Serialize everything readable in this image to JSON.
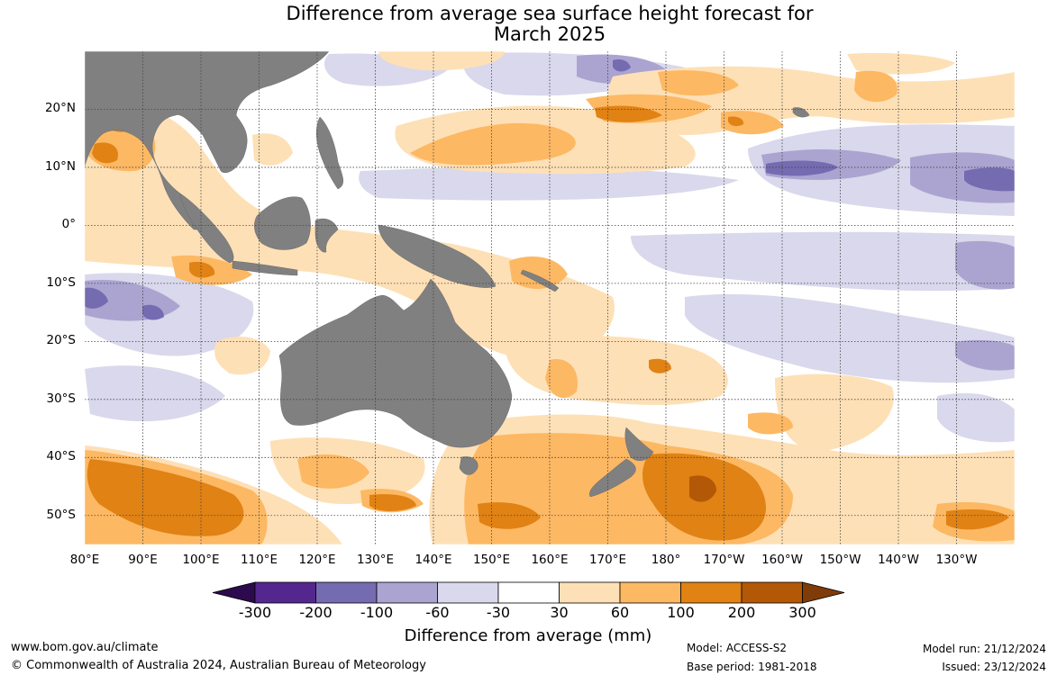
{
  "title_line1": "Difference from average sea surface height forecast for",
  "title_line2": "March 2025",
  "map": {
    "lon_range": [
      80,
      240
    ],
    "lat_range": [
      -55,
      30
    ],
    "lat_labels": [
      {
        "lat": 20,
        "label": "20°N"
      },
      {
        "lat": 10,
        "label": "10°N"
      },
      {
        "lat": 0,
        "label": "0°"
      },
      {
        "lat": -10,
        "label": "10°S"
      },
      {
        "lat": -20,
        "label": "20°S"
      },
      {
        "lat": -30,
        "label": "30°S"
      },
      {
        "lat": -40,
        "label": "40°S"
      },
      {
        "lat": -50,
        "label": "50°S"
      }
    ],
    "lon_labels": [
      {
        "lon": 80,
        "label": "80°E"
      },
      {
        "lon": 90,
        "label": "90°E"
      },
      {
        "lon": 100,
        "label": "100°E"
      },
      {
        "lon": 110,
        "label": "110°E"
      },
      {
        "lon": 120,
        "label": "120°E"
      },
      {
        "lon": 130,
        "label": "130°E"
      },
      {
        "lon": 140,
        "label": "140°E"
      },
      {
        "lon": 150,
        "label": "150°E"
      },
      {
        "lon": 160,
        "label": "160°E"
      },
      {
        "lon": 170,
        "label": "170°E"
      },
      {
        "lon": 180,
        "label": "180°"
      },
      {
        "lon": 190,
        "label": "170°W"
      },
      {
        "lon": 200,
        "label": "160°W"
      },
      {
        "lon": 210,
        "label": "150°W"
      },
      {
        "lon": 220,
        "label": "140°W"
      },
      {
        "lon": 230,
        "label": "130°W"
      }
    ],
    "land_color": "#808080"
  },
  "colorbar": {
    "ticks": [
      "-300",
      "-200",
      "-100",
      "-60",
      "-30",
      "30",
      "60",
      "100",
      "200",
      "300"
    ],
    "colors": [
      "#2d0a4e",
      "#54278f",
      "#756bb1",
      "#aba4d1",
      "#d9d8ec",
      "#ffffff",
      "#fee0b6",
      "#fdb863",
      "#e08214",
      "#b35806",
      "#7f3b08"
    ],
    "title": "Difference from average (mm)"
  },
  "footer": {
    "website": "www.bom.gov.au/climate",
    "copyright": "© Commonwealth of Australia 2024, Australian Bureau of Meteorology",
    "model": "Model: ACCESS-S2",
    "base_period": "Base period: 1981-2018",
    "model_run": "Model run: 21/12/2024",
    "issued": "Issued: 23/12/2024"
  }
}
